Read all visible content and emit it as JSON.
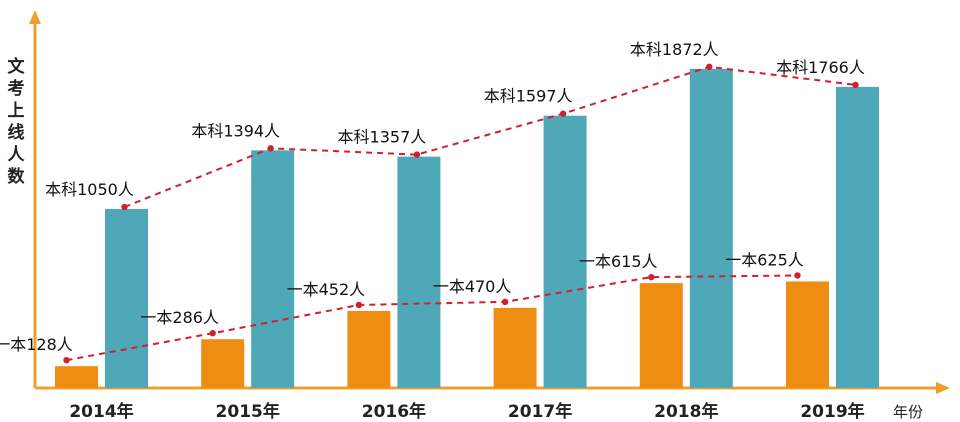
{
  "chart_data": {
    "type": "bar",
    "categories": [
      "2014年",
      "2015年",
      "2016年",
      "2017年",
      "2018年",
      "2019年"
    ],
    "ylabel": "文考上线人数",
    "xlabel": "年份",
    "series": [
      {
        "key": "yiben",
        "color": "#EF8C12",
        "values": [
          128,
          286,
          452,
          470,
          615,
          625
        ],
        "labels": [
          "一本128人",
          "一本286人",
          "一本452人",
          "一本470人",
          "一本615人",
          "一本625人"
        ]
      },
      {
        "key": "benke",
        "color": "#4FA8B8",
        "values": [
          1050,
          1394,
          1357,
          1597,
          1872,
          1766
        ],
        "labels": [
          "本科1050人",
          "本科1394人",
          "本科1357人",
          "本科1597人",
          "本科1872人",
          "本科1766人"
        ]
      }
    ],
    "trend_line_color": "#D01F2E",
    "axis_color": "#F0A02A",
    "grid": false,
    "legend": "none"
  }
}
